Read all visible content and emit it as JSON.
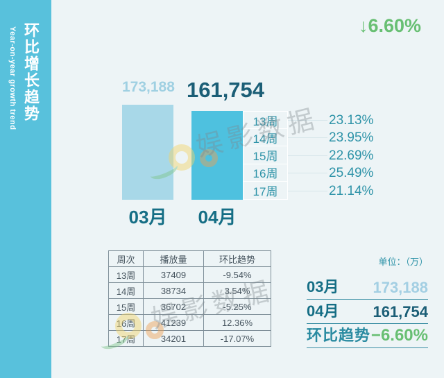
{
  "sidebar": {
    "title_zh": "环比增长趋势",
    "title_en": "Year-on-year growth trend"
  },
  "badge": {
    "text": "↓6.60%"
  },
  "chart_data": {
    "type": "bar",
    "title": "环比增长趋势 Year-on-year growth trend",
    "categories": [
      "03月",
      "04月"
    ],
    "values": [
      173188,
      161754
    ],
    "value_labels": [
      "173,188",
      "161,754"
    ],
    "unit": "万",
    "change_percent": -6.6,
    "bar_colors": [
      "#a8d8e8",
      "#4ec1df"
    ],
    "legend_position": "none",
    "weekly_share": {
      "labels": [
        "13周",
        "14周",
        "15周",
        "16周",
        "17周"
      ],
      "percents": [
        "23.13%",
        "23.95%",
        "22.69%",
        "25.49%",
        "21.14%"
      ]
    }
  },
  "table": {
    "headers": [
      "周次",
      "播放量",
      "环比趋势"
    ],
    "rows": [
      [
        "13周",
        "37409",
        "-9.54%"
      ],
      [
        "14周",
        "38734",
        "3.54%"
      ],
      [
        "15周",
        "36702",
        "-5.25%"
      ],
      [
        "16周",
        "41239",
        "12.36%"
      ],
      [
        "17周",
        "34201",
        "-17.07%"
      ]
    ]
  },
  "summary": {
    "unit_label": "单位：（万）",
    "rows": [
      {
        "label": "03月",
        "value": "173,188"
      },
      {
        "label": "04月",
        "value": "161,754"
      },
      {
        "label": "环比趋势",
        "value": "−6.60%"
      }
    ]
  },
  "watermark": {
    "brand": "娱影数据"
  },
  "colors": {
    "sidebar": "#58c1dc",
    "background": "#edf4f6",
    "bar_light": "#a8d8e8",
    "bar_dark": "#4ec1df",
    "teal_dark": "#1b5e76",
    "teal": "#2e93a8",
    "green": "#68bf73"
  }
}
